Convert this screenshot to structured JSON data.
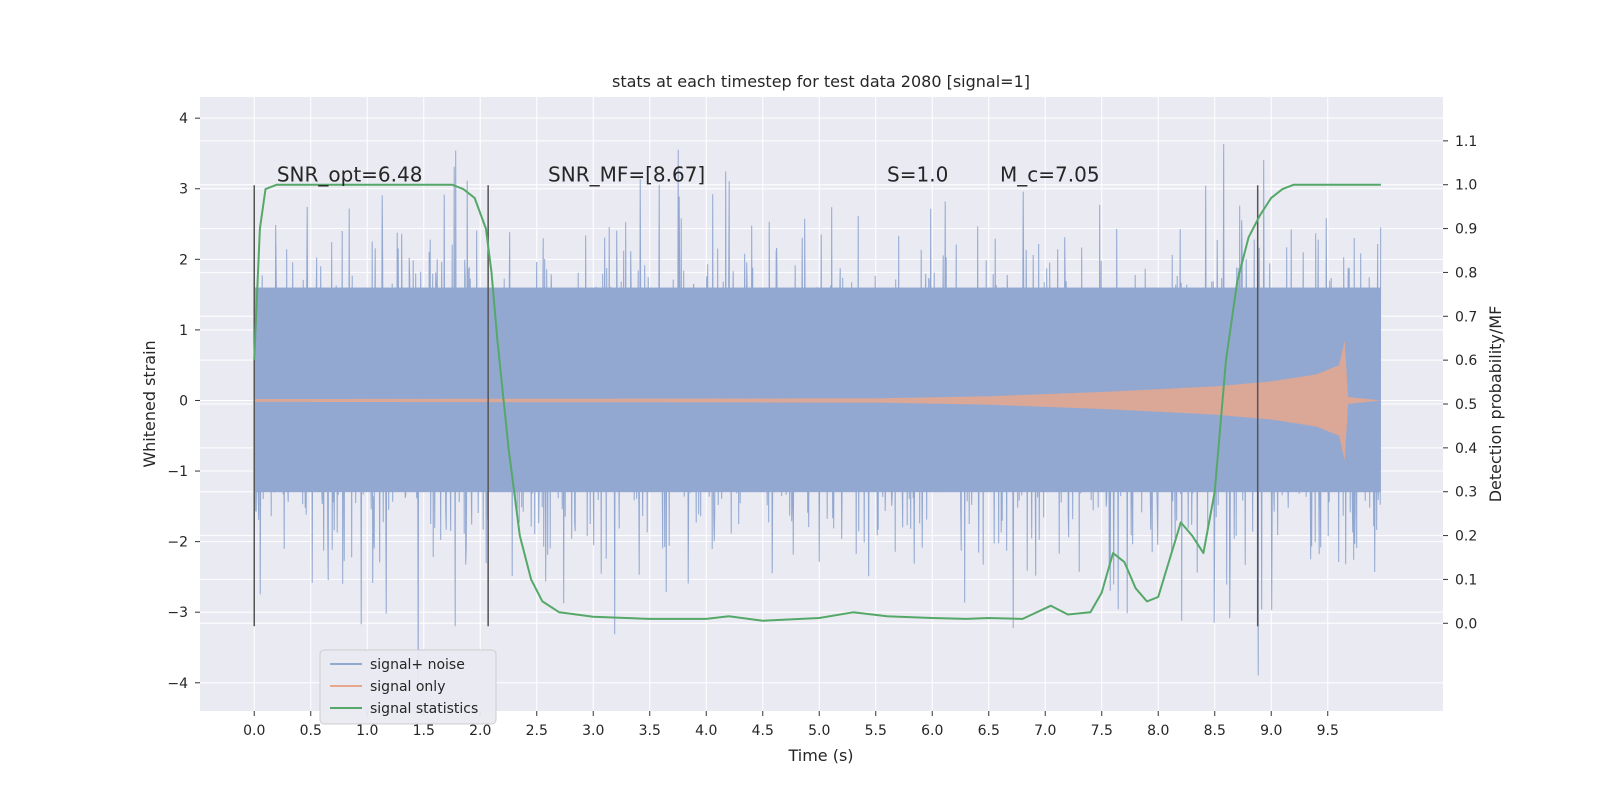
{
  "chart_data": {
    "type": "line",
    "title": "stats at each timestep for test data 2080 [signal=1]",
    "xlabel": "Time (s)",
    "ylabel_left": "Whitened strain",
    "ylabel_right": "Detection probability/MF",
    "xlim": [
      -0.48,
      10.52
    ],
    "ylim_left": [
      -4.4,
      4.3
    ],
    "ylim_right": [
      -0.2,
      1.2
    ],
    "x_ticks": [
      "0.0",
      "0.5",
      "1.0",
      "1.5",
      "2.0",
      "2.5",
      "3.0",
      "3.5",
      "4.0",
      "4.5",
      "5.0",
      "5.5",
      "6.0",
      "6.5",
      "7.0",
      "7.5",
      "8.0",
      "8.5",
      "9.0",
      "9.5"
    ],
    "y_ticks_left": [
      "−4",
      "−3",
      "−2",
      "−1",
      "0",
      "1",
      "2",
      "3",
      "4"
    ],
    "y_ticks_right": [
      "0.0",
      "0.1",
      "0.2",
      "0.3",
      "0.4",
      "0.5",
      "0.6",
      "0.7",
      "0.8",
      "0.9",
      "1.0",
      "1.1"
    ],
    "grid": true,
    "annotations": [
      {
        "text": "SNR_opt=6.48",
        "x": 0.2,
        "y": 3.1
      },
      {
        "text": "SNR_MF=[8.67]",
        "x": 2.6,
        "y": 3.1
      },
      {
        "text": "S=1.0",
        "x": 5.6,
        "y": 3.1
      },
      {
        "text": "M_c=7.05",
        "x": 6.6,
        "y": 3.1
      }
    ],
    "vertical_lines": [
      0.0,
      2.07,
      8.88
    ],
    "vline_range": [
      -3.2,
      3.05
    ],
    "noise": {
      "x_start": 0.0,
      "x_end": 9.97,
      "sigma": 1.0,
      "band_low": -1.3,
      "band_high": 1.6
    },
    "signal_envelope": {
      "x": [
        0.0,
        5.5,
        6.5,
        7.5,
        8.5,
        9.0,
        9.4,
        9.6,
        9.65,
        9.68,
        9.97
      ],
      "amplitude": [
        0.02,
        0.03,
        0.06,
        0.12,
        0.2,
        0.27,
        0.37,
        0.5,
        0.85,
        0.05,
        0.0
      ]
    },
    "series": [
      {
        "name": "signal+ noise",
        "color": "#92a8d1",
        "axis": "left"
      },
      {
        "name": "signal only",
        "color": "#e8a78c",
        "axis": "left"
      },
      {
        "name": "signal statistics",
        "color": "#55a868",
        "axis": "right",
        "x": [
          0.0,
          0.05,
          0.1,
          0.2,
          0.5,
          1.0,
          1.5,
          1.75,
          1.85,
          1.95,
          2.05,
          2.1,
          2.15,
          2.25,
          2.35,
          2.45,
          2.55,
          2.7,
          3.0,
          3.5,
          4.0,
          4.2,
          4.5,
          5.0,
          5.3,
          5.6,
          6.0,
          6.3,
          6.5,
          6.8,
          7.05,
          7.2,
          7.4,
          7.5,
          7.6,
          7.7,
          7.8,
          7.9,
          8.0,
          8.2,
          8.3,
          8.4,
          8.5,
          8.6,
          8.7,
          8.8,
          8.9,
          9.0,
          9.1,
          9.2,
          9.5,
          9.97
        ],
        "y": [
          0.6,
          0.9,
          0.99,
          1.0,
          1.0,
          1.0,
          1.0,
          1.0,
          0.99,
          0.97,
          0.9,
          0.8,
          0.65,
          0.4,
          0.2,
          0.1,
          0.05,
          0.025,
          0.015,
          0.01,
          0.01,
          0.016,
          0.006,
          0.012,
          0.025,
          0.016,
          0.012,
          0.01,
          0.012,
          0.01,
          0.04,
          0.02,
          0.025,
          0.07,
          0.16,
          0.14,
          0.08,
          0.05,
          0.06,
          0.23,
          0.2,
          0.16,
          0.3,
          0.6,
          0.78,
          0.88,
          0.93,
          0.97,
          0.99,
          1.0,
          1.0,
          1.0
        ]
      }
    ],
    "legend": {
      "placement": "lower-left"
    }
  }
}
